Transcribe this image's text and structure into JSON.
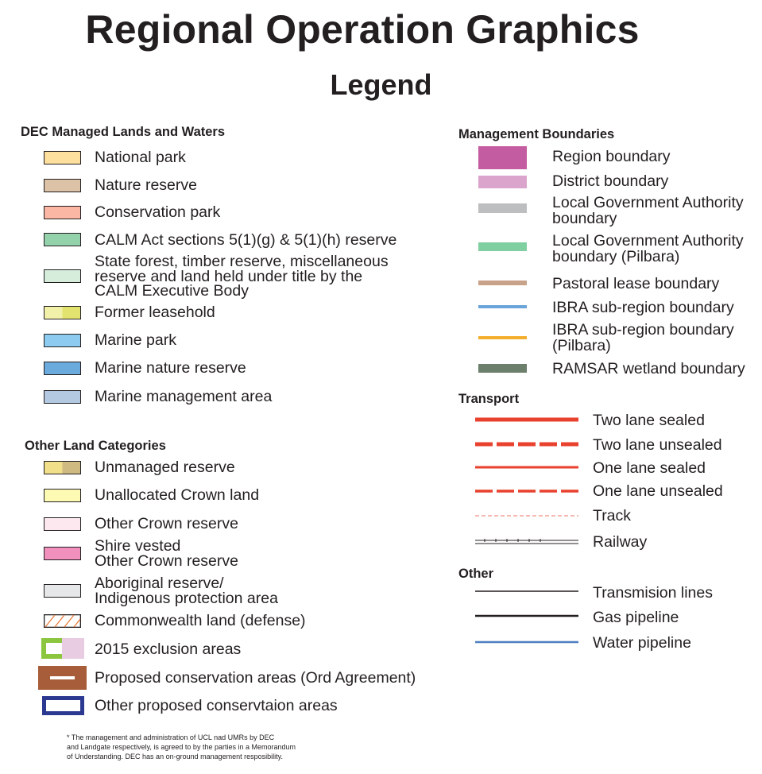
{
  "title": "Regional Operation Graphics",
  "subtitle": "Legend",
  "dec_lands": {
    "heading": "DEC Managed Lands and Waters",
    "items": [
      {
        "label": "National park",
        "color": "#fddf9e"
      },
      {
        "label": "Nature reserve",
        "color": "#dcc2a6"
      },
      {
        "label": "Conservation park",
        "color": "#fbb6a4"
      },
      {
        "label": "CALM Act sections 5(1)(g) & 5(1)(h) reserve",
        "color": "#94d2ac"
      },
      {
        "label": "State forest, timber reserve, miscellaneous\nreserve and land held under title by the\nCALM Executive Body",
        "color": "#d6eddc"
      },
      {
        "label": "Former leasehold",
        "color": "#f1f1a9",
        "color2": "#e2e26e"
      },
      {
        "label": "Marine park",
        "color": "#8ecbf0"
      },
      {
        "label": "Marine nature reserve",
        "color": "#6aaadc"
      },
      {
        "label": "Marine management area",
        "color": "#b2c9e1"
      }
    ]
  },
  "other_lands": {
    "heading": "Other Land Categories",
    "items": [
      {
        "label": "Unmanaged reserve",
        "color": "#f2df8a",
        "color2": "#cfba82"
      },
      {
        "label": "Unallocated Crown land",
        "color": "#fdfab4"
      },
      {
        "label": "Other Crown reserve",
        "color": "#fde8f0"
      },
      {
        "label": "Shire vested\nOther Crown reserve",
        "color": "#f18fbd"
      },
      {
        "label": "Aboriginal reserve/\nIndigenous protection area",
        "color": "#e6e7e8"
      },
      {
        "label": "Commonwealth land (defense)",
        "color": "#ffffff",
        "hatch": "#e97a3a"
      },
      {
        "label": "2015 exclusion areas",
        "color": "#e8cce2",
        "border": "#8cc63f"
      },
      {
        "label": "Proposed conservation areas (Ord Agreement)",
        "color": "#a85d3a"
      },
      {
        "label": "Other proposed conservtaion areas",
        "color": "#ffffff",
        "border": "#2b3990"
      }
    ]
  },
  "management_boundaries": {
    "heading": "Management Boundaries",
    "items": [
      {
        "label": "Region boundary",
        "color": "#c45ca2"
      },
      {
        "label": "District boundary",
        "color": "#dba4cc"
      },
      {
        "label": "Local Government Authority\nboundary",
        "color": "#bcbec0"
      },
      {
        "label": "Local Government Authority\nboundary (Pilbara)",
        "color": "#80cfa0"
      },
      {
        "label": "Pastoral lease boundary",
        "color": "#c9a28a"
      },
      {
        "label": "IBRA sub-region boundary",
        "color": "#6ba4da"
      },
      {
        "label": "IBRA sub-region boundary\n(Pilbara)",
        "color": "#f4ae2d"
      },
      {
        "label": "RAMSAR wetland boundary",
        "color": "#6b7f6a"
      }
    ]
  },
  "transport": {
    "heading": "Transport",
    "items": [
      {
        "label": "Two lane sealed",
        "color": "#e8412e"
      },
      {
        "label": "Two lane unsealed",
        "color": "#e8412e"
      },
      {
        "label": "One lane sealed",
        "color": "#e8412e"
      },
      {
        "label": "One lane unsealed",
        "color": "#e8412e"
      },
      {
        "label": "Track",
        "color": "#e8412e"
      },
      {
        "label": "Railway",
        "color": "#231f20"
      }
    ]
  },
  "other": {
    "heading": "Other",
    "items": [
      {
        "label": "Transmision lines",
        "color": "#231f20"
      },
      {
        "label": "Gas pipeline",
        "color": "#231f20"
      },
      {
        "label": "Water pipeline",
        "color": "#4f7fc0"
      }
    ]
  },
  "footnote": "* The management and administration of UCL nad UMRs by DEC\nand Landgate respectively, is agreed to by the parties in a Memorandum\nof Understanding. DEC has an on-ground management resposibility."
}
